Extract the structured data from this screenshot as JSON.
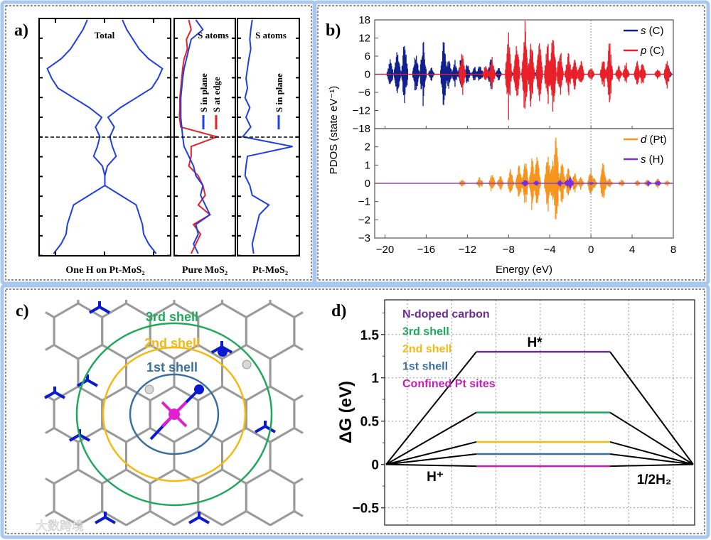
{
  "panel_labels": {
    "a": "a)",
    "b": "b)",
    "c": "c)",
    "d": "d)"
  },
  "colors": {
    "blue": "#1f3fe0",
    "red": "#e8202a",
    "navy": "#10208c",
    "orange": "#f7941d",
    "violet": "#7a2ee0",
    "purple": "#6a2d91",
    "green": "#1ea85a",
    "yellow": "#f5b914",
    "steel": "#3a6fa0",
    "magenta": "#c21fb4",
    "frame": "#a9c7ef"
  },
  "chart_data": [
    {
      "id": "a",
      "type": "line",
      "orientation": "vertical-energy",
      "subplots": [
        {
          "title": "Total",
          "xlabel": "One H on Pt-MoS₂",
          "symmetric": true,
          "series": [
            {
              "name": "Total",
              "values": [
                28,
                35,
                45,
                55,
                70,
                92,
                85,
                75,
                50,
                25,
                5,
                15,
                8,
                12,
                18,
                4,
                0,
                0,
                25,
                50,
                55,
                60,
                62,
                70,
                82
              ]
            }
          ]
        },
        {
          "title": "S atoms",
          "xlabel": "Pure MoS₂",
          "series": [
            {
              "name": "S in plane",
              "values": [
                40,
                55,
                30,
                25,
                20,
                15,
                12,
                10,
                8,
                8,
                8,
                10,
                12,
                15,
                25,
                35,
                40,
                55,
                50,
                60,
                70,
                40,
                45,
                35,
                45
              ]
            },
            {
              "name": "S at edge",
              "values": [
                25,
                30,
                20,
                22,
                15,
                12,
                10,
                8,
                6,
                6,
                5,
                8,
                85,
                30,
                30,
                25,
                45,
                55,
                60,
                45,
                70,
                35,
                50,
                40,
                30
              ]
            }
          ]
        },
        {
          "title": "S atoms",
          "xlabel": "Pt-MoS₂",
          "series": [
            {
              "name": "S in plane",
              "values": [
                25,
                22,
                20,
                22,
                18,
                15,
                12,
                15,
                10,
                20,
                12,
                22,
                5,
                110,
                15,
                12,
                10,
                20,
                25,
                60,
                40,
                35,
                30,
                25,
                28
              ]
            }
          ]
        }
      ],
      "fermi_level_marker": "dashed"
    },
    {
      "id": "b",
      "type": "line",
      "xlabel": "Energy (eV)",
      "ylabel": "PDOS (state eV⁻¹)",
      "xlim": [
        -21,
        8
      ],
      "xticks": [
        "−20",
        "−16",
        "−12",
        "−8",
        "−4",
        "0",
        "4",
        "8"
      ],
      "xtick_values": [
        -20,
        -16,
        -12,
        -8,
        -4,
        0,
        4,
        8
      ],
      "subplots": [
        {
          "ylim": [
            -18,
            18
          ],
          "yticks": [
            "18",
            "12",
            "6",
            "0",
            "−6",
            "−12",
            "−18"
          ],
          "ytick_values": [
            18,
            12,
            6,
            0,
            -6,
            -12,
            -18
          ],
          "legend": "top-right",
          "series": [
            {
              "name_italic": "s",
              "name_rest": " (C)",
              "color": "#10208c",
              "peaks": [
                [
                  -19.5,
                  6
                ],
                [
                  -18.8,
                  11
                ],
                [
                  -18.1,
                  13
                ],
                [
                  -17,
                  9
                ],
                [
                  -16.3,
                  13.5
                ],
                [
                  -15.5,
                  3
                ],
                [
                  -14.3,
                  13
                ],
                [
                  -13.8,
                  6
                ],
                [
                  -13.2,
                  5
                ],
                [
                  -12.6,
                  7
                ],
                [
                  -12,
                  4
                ],
                [
                  -11.3,
                  3
                ],
                [
                  -10.8,
                  4
                ],
                [
                  -9.7,
                  7
                ],
                [
                  -9,
                  3
                ],
                [
                  -7.8,
                  1.5
                ],
                [
                  -6.5,
                  1.5
                ],
                [
                  -5.5,
                  1
                ],
                [
                  7.5,
                  3
                ]
              ]
            },
            {
              "name_italic": "p",
              "name_rest": " (C)",
              "color": "#e8202a",
              "peaks": [
                [
                  -12.5,
                  8
                ],
                [
                  -10.2,
                  4
                ],
                [
                  -9.6,
                  6
                ],
                [
                  -8,
                  14
                ],
                [
                  -7.2,
                  13
                ],
                [
                  -6.4,
                  18
                ],
                [
                  -5.8,
                  14
                ],
                [
                  -5,
                  12
                ],
                [
                  -4.2,
                  12
                ],
                [
                  -3.7,
                  18
                ],
                [
                  -3,
                  10
                ],
                [
                  -2.2,
                  8
                ],
                [
                  -1.6,
                  6
                ],
                [
                  -1,
                  6
                ],
                [
                  0,
                  3
                ],
                [
                  1.2,
                  6
                ],
                [
                  1.8,
                  12
                ],
                [
                  2.7,
                  3
                ],
                [
                  3.4,
                  4.5
                ],
                [
                  4.5,
                  4.5
                ],
                [
                  5,
                  4.5
                ],
                [
                  6.5,
                  2
                ],
                [
                  7.4,
                  5
                ]
              ]
            }
          ]
        },
        {
          "ylim": [
            -3,
            3
          ],
          "yticks": [
            "2",
            "1",
            "0",
            "−1",
            "−2",
            "−3"
          ],
          "ytick_values": [
            2,
            1,
            0,
            -1,
            -2,
            -3
          ],
          "legend": "top-right",
          "series": [
            {
              "name_italic": "d",
              "name_rest": " (Pt)",
              "color": "#f7941d",
              "peaks": [
                [
                  -12.5,
                  0.3
                ],
                [
                  -10.8,
                  0.4
                ],
                [
                  -9.6,
                  0.6
                ],
                [
                  -8.8,
                  0.5
                ],
                [
                  -7.8,
                  0.8
                ],
                [
                  -7,
                  1.2
                ],
                [
                  -6.4,
                  1.6
                ],
                [
                  -5.7,
                  1.6
                ],
                [
                  -5.2,
                  1.8
                ],
                [
                  -4.2,
                  2.1
                ],
                [
                  -3.7,
                  1.5
                ],
                [
                  -3.4,
                  2.8
                ],
                [
                  -2.8,
                  1.4
                ],
                [
                  -2.2,
                  1
                ],
                [
                  -1.6,
                  0.7
                ],
                [
                  -1,
                  0.4
                ],
                [
                  0,
                  0.9
                ],
                [
                  0.3,
                  0.3
                ],
                [
                  1.2,
                  1.4
                ],
                [
                  1.8,
                  0.3
                ],
                [
                  3,
                  0.25
                ],
                [
                  4.5,
                  0.2
                ],
                [
                  5.5,
                  0.3
                ],
                [
                  6.5,
                  0.3
                ],
                [
                  7.4,
                  0.2
                ]
              ]
            },
            {
              "name_italic": "s",
              "name_rest": " (H)",
              "color": "#7a2ee0",
              "peaks": [
                [
                  -6.4,
                  0.3
                ],
                [
                  -5.3,
                  0.2
                ],
                [
                  -3,
                  0.2
                ],
                [
                  -2.3,
                  0.25
                ],
                [
                  -2,
                  0.4
                ],
                [
                  0,
                  0.1
                ],
                [
                  5.6,
                  0.15
                ],
                [
                  6.5,
                  0.2
                ]
              ]
            }
          ]
        }
      ]
    },
    {
      "id": "d",
      "type": "line",
      "ylabel": "ΔG (eV)",
      "ylim": [
        -0.7,
        1.9
      ],
      "yticks": [
        "1.5",
        "1",
        "0.5",
        "0",
        "−0.5"
      ],
      "ytick_values": [
        1.5,
        1,
        0.5,
        0,
        -0.5
      ],
      "grid": true,
      "states": [
        "H⁺",
        "H*",
        "1/2H₂"
      ],
      "legend": "top-left",
      "series": [
        {
          "name": "N-doped carbon",
          "color": "#6a2d91",
          "values": [
            0,
            1.3,
            0
          ]
        },
        {
          "name": "3rd shell",
          "color": "#1ea85a",
          "values": [
            0,
            0.6,
            0
          ]
        },
        {
          "name": "2nd shell",
          "color": "#f5b914",
          "values": [
            0,
            0.26,
            0
          ]
        },
        {
          "name": "1st shell",
          "color": "#3a6fa0",
          "values": [
            0,
            0.12,
            0
          ]
        },
        {
          "name": "Confined Pt sites",
          "color": "#c21fb4",
          "values": [
            0,
            -0.02,
            0
          ]
        }
      ]
    }
  ],
  "diagram_c": {
    "shells": [
      {
        "label": "3rd shell",
        "color": "#1ea85a"
      },
      {
        "label": "2nd shell",
        "color": "#f5b914"
      },
      {
        "label": "1st shell",
        "color": "#3a6fa0"
      }
    ],
    "watermark": "大数跨境"
  }
}
